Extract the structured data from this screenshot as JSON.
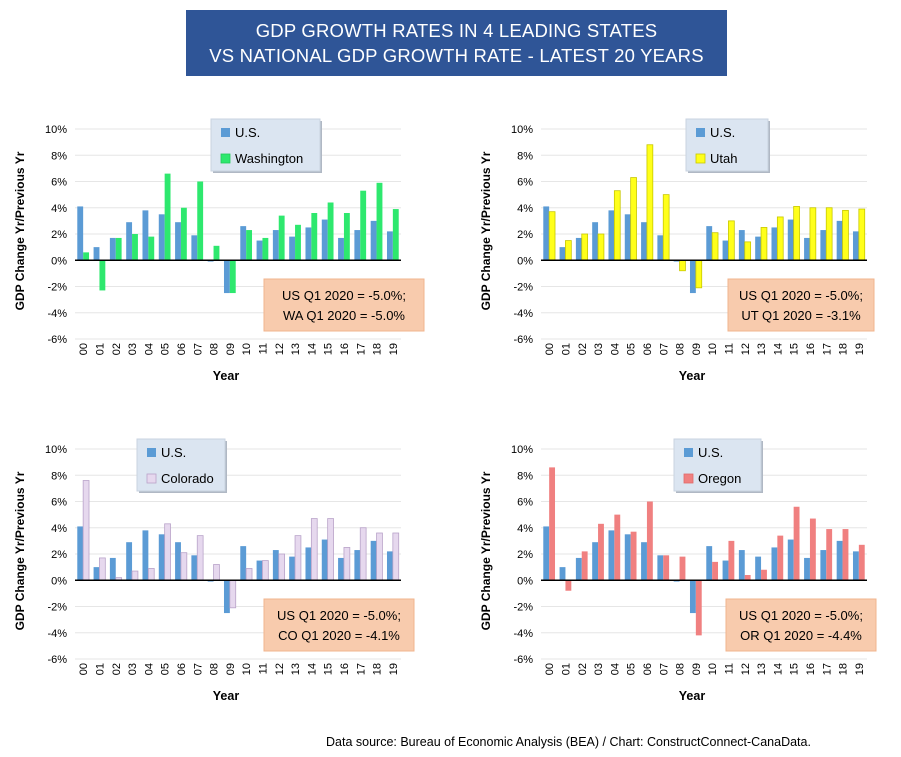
{
  "title": {
    "line1": "GDP GROWTH RATES IN 4 LEADING STATES",
    "line2": "VS NATIONAL GDP GROWTH RATE - LATEST 20 YEARS"
  },
  "source": "Data source: Bureau of Economic Analysis (BEA) / Chart: ConstructConnect-CanaData.",
  "colors": {
    "us": "#5b9bd5",
    "washington": "#2ee86e",
    "utah": "#ffff1a",
    "colorado": "#e6d8ee",
    "oregon": "#f08080",
    "annotation_bg": "#f8cbad",
    "legend_bg": "#dbe5f1",
    "title_bg": "#2f5597"
  },
  "chart_data": [
    {
      "type": "bar",
      "categories": [
        "00",
        "01",
        "02",
        "03",
        "04",
        "05",
        "06",
        "07",
        "08",
        "09",
        "10",
        "11",
        "12",
        "13",
        "14",
        "15",
        "16",
        "17",
        "18",
        "19"
      ],
      "series": [
        {
          "name": "U.S.",
          "values": [
            4.1,
            1.0,
            1.7,
            2.9,
            3.8,
            3.5,
            2.9,
            1.9,
            -0.1,
            -2.5,
            2.6,
            1.5,
            2.3,
            1.8,
            2.5,
            3.1,
            1.7,
            2.3,
            3.0,
            2.2
          ]
        },
        {
          "name": "Washington",
          "values": [
            0.6,
            -2.3,
            1.7,
            2.0,
            1.8,
            6.6,
            4.0,
            6.0,
            1.1,
            -2.5,
            2.3,
            1.7,
            3.4,
            2.7,
            3.6,
            4.4,
            3.6,
            5.3,
            5.9,
            3.9
          ]
        }
      ],
      "ylabel": "GDP Change Yr/Previous Yr",
      "xlabel": "Year",
      "ylim": [
        -6,
        10
      ],
      "yticks": [
        "10%",
        "8%",
        "6%",
        "4%",
        "2%",
        "0%",
        "-2%",
        "-4%",
        "-6%"
      ],
      "annotation": {
        "line1": "US Q1 2020 = -5.0%;",
        "line2": "WA Q1 2020 = -5.0%"
      }
    },
    {
      "type": "bar",
      "categories": [
        "00",
        "01",
        "02",
        "03",
        "04",
        "05",
        "06",
        "07",
        "08",
        "09",
        "10",
        "11",
        "12",
        "13",
        "14",
        "15",
        "16",
        "17",
        "18",
        "19"
      ],
      "series": [
        {
          "name": "U.S.",
          "values": [
            4.1,
            1.0,
            1.7,
            2.9,
            3.8,
            3.5,
            2.9,
            1.9,
            -0.1,
            -2.5,
            2.6,
            1.5,
            2.3,
            1.8,
            2.5,
            3.1,
            1.7,
            2.3,
            3.0,
            2.2
          ]
        },
        {
          "name": "Utah",
          "values": [
            3.7,
            1.5,
            2.0,
            2.0,
            5.3,
            6.3,
            8.8,
            5.0,
            -0.8,
            -2.1,
            2.1,
            3.0,
            1.4,
            2.5,
            3.3,
            4.1,
            4.0,
            4.0,
            3.8,
            3.9
          ]
        }
      ],
      "ylabel": "GDP Change Yr/Previous Yr",
      "xlabel": "Year",
      "ylim": [
        -6,
        10
      ],
      "yticks": [
        "10%",
        "8%",
        "6%",
        "4%",
        "2%",
        "0%",
        "-2%",
        "-4%",
        "-6%"
      ],
      "annotation": {
        "line1": "US Q1 2020 = -5.0%;",
        "line2": "UT Q1 2020 = -3.1%"
      }
    },
    {
      "type": "bar",
      "categories": [
        "00",
        "01",
        "02",
        "03",
        "04",
        "05",
        "06",
        "07",
        "08",
        "09",
        "10",
        "11",
        "12",
        "13",
        "14",
        "15",
        "16",
        "17",
        "18",
        "19"
      ],
      "series": [
        {
          "name": "U.S.",
          "values": [
            4.1,
            1.0,
            1.7,
            2.9,
            3.8,
            3.5,
            2.9,
            1.9,
            -0.1,
            -2.5,
            2.6,
            1.5,
            2.3,
            1.8,
            2.5,
            3.1,
            1.7,
            2.3,
            3.0,
            2.2
          ]
        },
        {
          "name": "Colorado",
          "values": [
            7.6,
            1.7,
            0.2,
            0.7,
            0.9,
            4.3,
            2.1,
            3.4,
            1.2,
            -2.1,
            0.9,
            1.5,
            2.0,
            3.4,
            4.7,
            4.7,
            2.5,
            4.0,
            3.6,
            3.6
          ]
        }
      ],
      "ylabel": "GDP Change Yr/Previous Yr",
      "xlabel": "Year",
      "ylim": [
        -6,
        10
      ],
      "yticks": [
        "10%",
        "8%",
        "6%",
        "4%",
        "2%",
        "0%",
        "-2%",
        "-4%",
        "-6%"
      ],
      "annotation": {
        "line1": "US Q1 2020 = -5.0%;",
        "line2": "CO Q1 2020 = -4.1%"
      }
    },
    {
      "type": "bar",
      "categories": [
        "00",
        "01",
        "02",
        "03",
        "04",
        "05",
        "06",
        "07",
        "08",
        "09",
        "10",
        "11",
        "12",
        "13",
        "14",
        "15",
        "16",
        "17",
        "18",
        "19"
      ],
      "series": [
        {
          "name": "U.S.",
          "values": [
            4.1,
            1.0,
            1.7,
            2.9,
            3.8,
            3.5,
            2.9,
            1.9,
            -0.1,
            -2.5,
            2.6,
            1.5,
            2.3,
            1.8,
            2.5,
            3.1,
            1.7,
            2.3,
            3.0,
            2.2
          ]
        },
        {
          "name": "Oregon",
          "values": [
            8.6,
            -0.8,
            2.2,
            4.3,
            5.0,
            3.7,
            6.0,
            1.9,
            1.8,
            -4.2,
            1.4,
            3.0,
            0.4,
            0.8,
            3.4,
            5.6,
            4.7,
            3.9,
            3.9,
            2.7
          ]
        }
      ],
      "ylabel": "GDP Change Yr/Previous Yr",
      "xlabel": "Year",
      "ylim": [
        -6,
        10
      ],
      "yticks": [
        "10%",
        "8%",
        "6%",
        "4%",
        "2%",
        "0%",
        "-2%",
        "-4%",
        "-6%"
      ],
      "annotation": {
        "line1": "US Q1 2020 = -5.0%;",
        "line2": "OR Q1 2020 = -4.4%"
      }
    }
  ]
}
